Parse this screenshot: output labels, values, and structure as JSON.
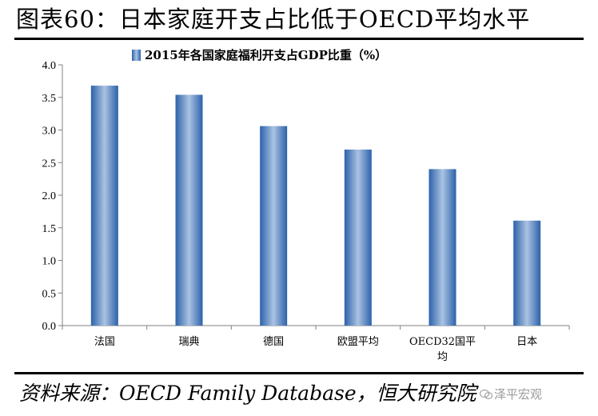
{
  "header": {
    "title": "图表60：日本家庭开支占比低于OECD平均水平"
  },
  "footer": {
    "source": "资料来源：OECD Family Database，恒大研究院",
    "watermark": "泽平宏观"
  },
  "chart_data": {
    "type": "bar",
    "legend": "2015年各国家庭福利开支占GDP比重（%）",
    "legend_position": "top",
    "categories": [
      "法国",
      "瑞典",
      "德国",
      "欧盟平均",
      "OECD32国平均",
      "日本"
    ],
    "category_lines": [
      [
        "法国"
      ],
      [
        "瑞典"
      ],
      [
        "德国"
      ],
      [
        "欧盟平均"
      ],
      [
        "OECD32国平",
        "均"
      ],
      [
        "日本"
      ]
    ],
    "series": [
      {
        "values": [
          3.68,
          3.54,
          3.06,
          2.7,
          2.4,
          1.61
        ]
      }
    ],
    "ylim": [
      0,
      4
    ],
    "yticks": [
      "0.0",
      "0.5",
      "1.0",
      "1.5",
      "2.0",
      "2.5",
      "3.0",
      "3.5",
      "4.0"
    ],
    "grid": false,
    "bar_color": "#4a7fbe"
  }
}
